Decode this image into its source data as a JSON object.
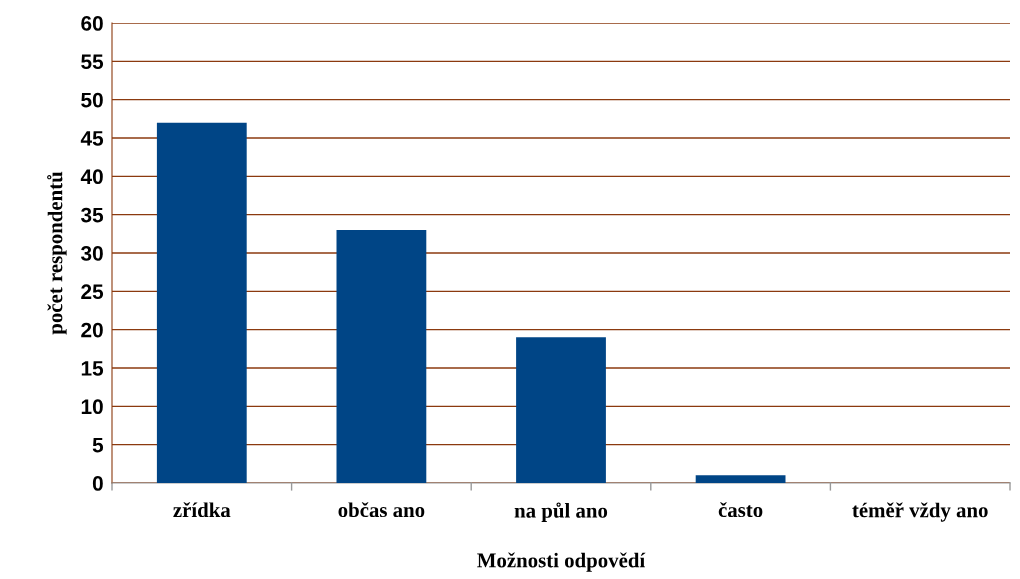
{
  "chart_data": {
    "type": "bar",
    "xlabel": "Možnosti odpovědí",
    "ylabel": "počet respondentů",
    "categories": [
      "zřídka",
      "občas ano",
      "na půl ano",
      "často",
      "téměř vždy ano"
    ],
    "values": [
      47,
      33,
      19,
      1,
      0
    ],
    "color": "#004586",
    "ylim": [
      0,
      60
    ],
    "yticks": [
      0,
      5,
      10,
      15,
      20,
      25,
      30,
      35,
      40,
      45,
      50,
      55,
      60
    ],
    "grid": "y"
  }
}
